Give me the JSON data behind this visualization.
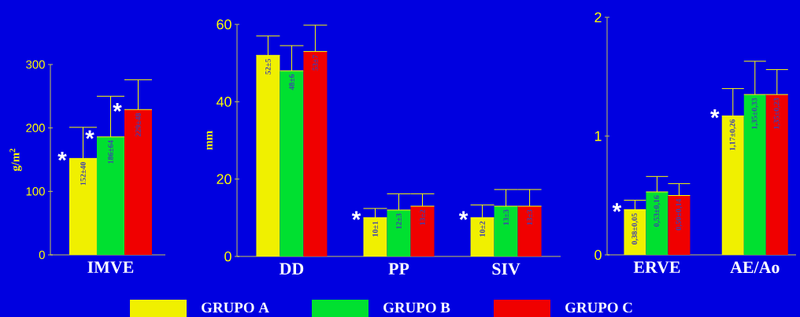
{
  "chart_data": [
    {
      "type": "bar",
      "categories": [
        "IMVE"
      ],
      "ylabel": "g/m$^{2}$",
      "ylim": [
        0,
        300
      ],
      "yticks": [
        0,
        100,
        200,
        300
      ],
      "series": [
        {
          "color": "#f0f000",
          "values": [
            152
          ],
          "errors": [
            [
              152,
              201
            ]
          ],
          "value_labels": [
            "152±40"
          ]
        },
        {
          "color": "#00e030",
          "values": [
            186
          ],
          "errors": [
            [
              186,
              250
            ]
          ],
          "value_labels": [
            "186±64"
          ]
        },
        {
          "color": "#f00000",
          "values": [
            229
          ],
          "errors": [
            [
              229,
              276
            ]
          ],
          "value_labels": [
            "229±48"
          ]
        }
      ],
      "annotations": [
        "*",
        "*",
        "*"
      ]
    },
    {
      "type": "bar",
      "categories": [
        "DD",
        "PP",
        "SIV"
      ],
      "ylabel": "mm",
      "ylim": [
        0,
        60
      ],
      "yticks": [
        0,
        20,
        40,
        60
      ],
      "legend": "bottom",
      "series": [
        {
          "name": "GRUPO A",
          "color": "#f0f000",
          "values": [
            52,
            10,
            10
          ],
          "errors": [
            [
              52,
              57
            ],
            [
              10,
              12.4
            ],
            [
              10,
              13.3
            ]
          ],
          "value_labels": [
            "52±5",
            "10±1",
            "10±2"
          ]
        },
        {
          "name": "GRUPO B",
          "color": "#00e030",
          "values": [
            48,
            12,
            13
          ],
          "errors": [
            [
              48,
              54.5
            ],
            [
              12,
              16.2
            ],
            [
              13,
              17.3
            ]
          ],
          "value_labels": [
            "48±6",
            "12±3",
            "13±3"
          ]
        },
        {
          "name": "GRUPO C",
          "color": "#f00000",
          "values": [
            53,
            13,
            13
          ],
          "errors": [
            [
              53,
              59.8
            ],
            [
              13,
              16.2
            ],
            [
              13,
              17.3
            ]
          ],
          "value_labels": [
            "53±7",
            "13±2",
            "13±3"
          ]
        }
      ],
      "annotations": [
        "*",
        "*"
      ]
    },
    {
      "type": "bar",
      "categories": [
        "ERVE",
        "AE/Ao"
      ],
      "ylim": [
        0,
        2
      ],
      "yticks": [
        0,
        1,
        2
      ],
      "series": [
        {
          "color": "#f0f000",
          "values": [
            0.38,
            1.17
          ],
          "errors": [
            [
              0.38,
              0.46
            ],
            [
              1.17,
              1.4
            ]
          ],
          "value_labels": [
            "0,38±0,05",
            "1,17±0,26"
          ]
        },
        {
          "color": "#00e030",
          "values": [
            0.53,
            1.35
          ],
          "errors": [
            [
              0.53,
              0.66
            ],
            [
              1.35,
              1.63
            ]
          ],
          "value_labels": [
            "0,53±0,16",
            "1,35±0,33"
          ]
        },
        {
          "color": "#f00000",
          "values": [
            0.5,
            1.35
          ],
          "errors": [
            [
              0.5,
              0.6
            ],
            [
              1.35,
              1.56
            ]
          ],
          "value_labels": [
            "0,50±0,14",
            "1,35±0,23"
          ]
        }
      ],
      "annotations": [
        "*",
        "*"
      ]
    }
  ]
}
